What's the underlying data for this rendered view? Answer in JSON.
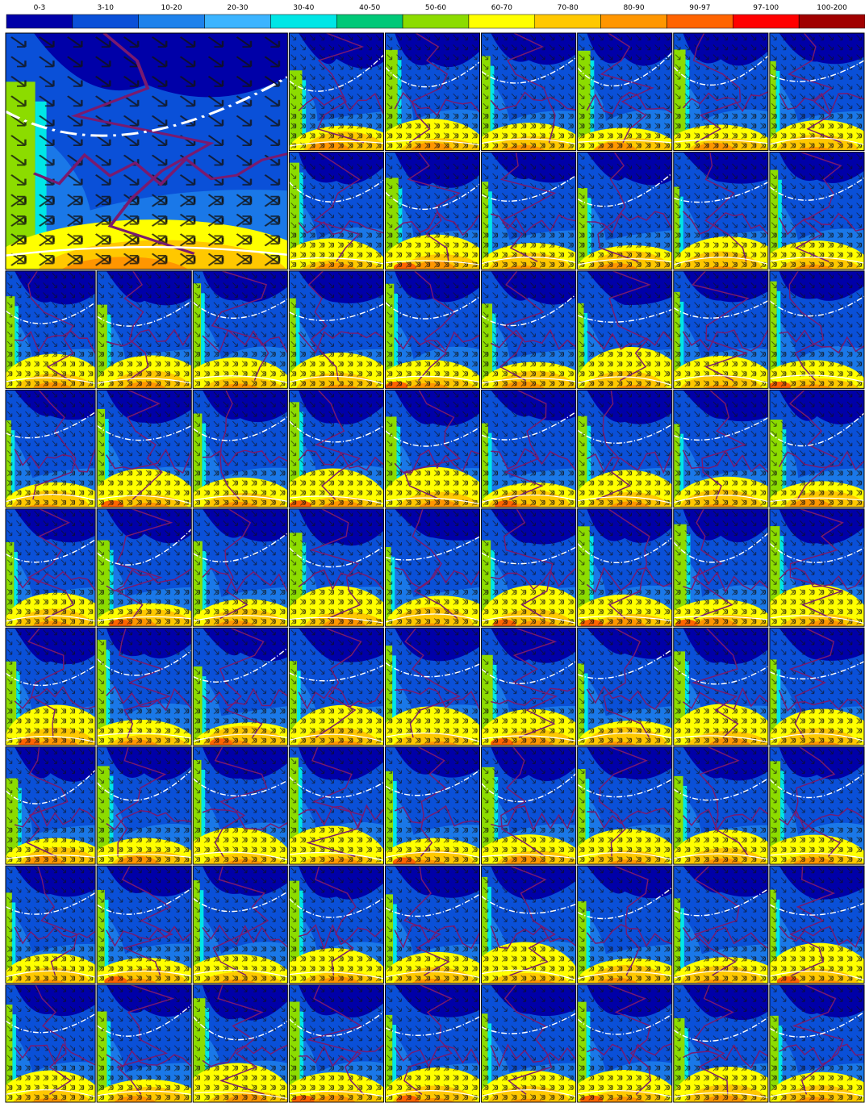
{
  "legend": [
    {
      "label": "0-3",
      "color": "#0000a8"
    },
    {
      "label": "3-10",
      "color": "#0a50d8"
    },
    {
      "label": "10-20",
      "color": "#1e82ec"
    },
    {
      "label": "20-30",
      "color": "#3cb4ff"
    },
    {
      "label": "30-40",
      "color": "#00e6e6"
    },
    {
      "label": "40-50",
      "color": "#00c878"
    },
    {
      "label": "50-60",
      "color": "#8cdc00"
    },
    {
      "label": "60-70",
      "color": "#ffff00"
    },
    {
      "label": "70-80",
      "color": "#ffc800"
    },
    {
      "label": "80-90",
      "color": "#ff9600"
    },
    {
      "label": "90-97",
      "color": "#ff6400"
    },
    {
      "label": "97-100",
      "color": "#ff0000"
    },
    {
      "label": "100-200",
      "color": "#a00000"
    }
  ]
}
